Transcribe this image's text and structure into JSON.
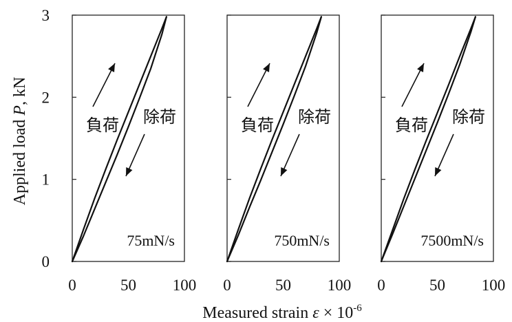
{
  "chart_data": {
    "type": "line",
    "ylabel_prefix": "Applied load ",
    "ylabel_var": "P",
    "ylabel_suffix": ",  kN",
    "xlabel_prefix": "Measured strain ",
    "xlabel_var": "ε",
    "xlabel_times": " × 10",
    "xlabel_exp": "-6",
    "xlim": [
      0,
      100
    ],
    "ylim": [
      0,
      3
    ],
    "xticks": [
      "0",
      "50",
      "100"
    ],
    "yticks": [
      "0",
      "1",
      "2",
      "3"
    ],
    "annotations": {
      "loading": "負荷",
      "unloading": "除荷"
    },
    "panels": [
      {
        "rate_label": "75mN/s",
        "series": [
          {
            "x": [
              0,
              10,
              20,
              30,
              40,
              50,
              60,
              70,
              80,
              84
            ],
            "y": [
              0,
              0.39,
              0.77,
              1.13,
              1.48,
              1.82,
              2.16,
              2.5,
              2.84,
              2.98
            ]
          },
          {
            "x": [
              0,
              10,
              20,
              30,
              40,
              50,
              60,
              70,
              80,
              84
            ],
            "y": [
              0,
              0.31,
              0.64,
              0.97,
              1.3,
              1.64,
              1.99,
              2.35,
              2.77,
              2.98
            ]
          }
        ]
      },
      {
        "rate_label": "750mN/s",
        "series": [
          {
            "x": [
              0,
              10,
              20,
              30,
              40,
              50,
              60,
              70,
              80,
              84
            ],
            "y": [
              0,
              0.39,
              0.77,
              1.13,
              1.48,
              1.82,
              2.16,
              2.5,
              2.84,
              2.98
            ]
          },
          {
            "x": [
              0,
              10,
              20,
              30,
              40,
              50,
              60,
              70,
              80,
              84
            ],
            "y": [
              0,
              0.32,
              0.66,
              0.99,
              1.33,
              1.67,
              2.02,
              2.38,
              2.79,
              2.98
            ]
          }
        ]
      },
      {
        "rate_label": "7500mN/s",
        "series": [
          {
            "x": [
              0,
              10,
              20,
              30,
              40,
              50,
              60,
              70,
              80,
              84
            ],
            "y": [
              0,
              0.38,
              0.76,
              1.12,
              1.47,
              1.81,
              2.15,
              2.5,
              2.84,
              2.98
            ]
          },
          {
            "x": [
              0,
              10,
              20,
              30,
              40,
              50,
              60,
              70,
              80,
              84
            ],
            "y": [
              0,
              0.33,
              0.67,
              1.01,
              1.35,
              1.69,
              2.04,
              2.4,
              2.8,
              2.98
            ]
          }
        ]
      }
    ]
  }
}
